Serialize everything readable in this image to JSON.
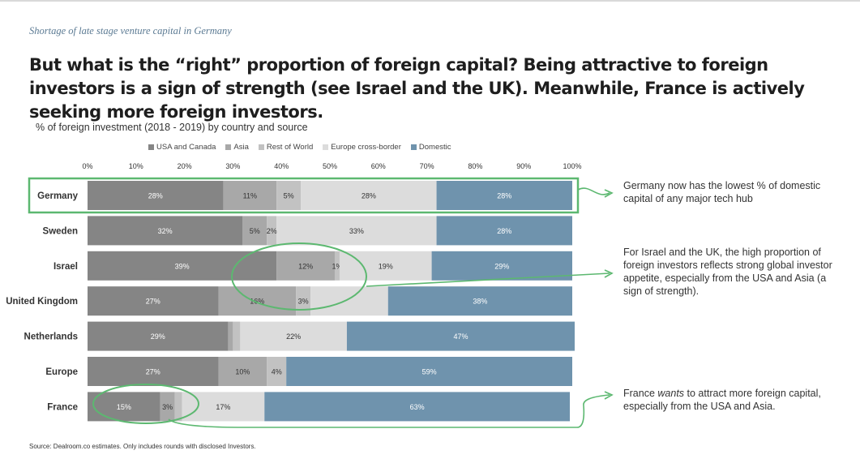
{
  "kicker": "Shortage of late stage venture capital in Germany",
  "headline": "But what is the “right” proportion of foreign capital? Being attractive to foreign investors is a sign of strength (see Israel and the UK). Meanwhile, France is actively seeking more foreign investors.",
  "source": "Source: Dealroom.co estimates. Only includes rounds with disclosed Investors.",
  "annotations": {
    "germany": "Germany now has the lowest % of domestic capital of any major tech hub",
    "israel_uk": "For Israel and the UK, the high proportion of foreign investors reflects strong global investor appetite, especially from the USA and Asia (a sign of strength).",
    "france_pre": "France",
    "france_em": "wants",
    "france_post": "to attract more foreign capital, especially from the USA and Asia."
  },
  "colors": {
    "usa_canada": "#858585",
    "asia": "#a8a8a8",
    "rest_of_world": "#c2c2c2",
    "europe_cross_border": "#dcdcdc",
    "domestic": "#6f93ad",
    "highlight": "#5cb870"
  },
  "chart_data": {
    "type": "bar",
    "orientation": "horizontal",
    "stacked": true,
    "title": "% of foreign investment (2018 - 2019) by country and source",
    "xlim": [
      0,
      100
    ],
    "x_ticks": [
      "0%",
      "10%",
      "20%",
      "30%",
      "40%",
      "50%",
      "60%",
      "70%",
      "80%",
      "90%",
      "100%"
    ],
    "legend_position": "top",
    "categories": [
      "Germany",
      "Sweden",
      "Israel",
      "United Kingdom",
      "Netherlands",
      "Europe",
      "France"
    ],
    "series": [
      {
        "name": "USA and Canada",
        "values": [
          28,
          32,
          39,
          27,
          29,
          27,
          15
        ],
        "labels": [
          "28%",
          "32%",
          "39%",
          "27%",
          "29%",
          "27%",
          "15%"
        ]
      },
      {
        "name": "Asia",
        "values": [
          11,
          5,
          12,
          16,
          1,
          10,
          3
        ],
        "labels": [
          "11%",
          "5%",
          "12%",
          "16%",
          "",
          "10%",
          "3%"
        ]
      },
      {
        "name": "Rest of World",
        "values": [
          5,
          2,
          1,
          3,
          1.5,
          4,
          1.5
        ],
        "labels": [
          "5%",
          "2%",
          "1%",
          "3%",
          "",
          "4%",
          ""
        ]
      },
      {
        "name": "Europe cross-border",
        "values": [
          28,
          33,
          19,
          16,
          22,
          0,
          17
        ],
        "labels": [
          "28%",
          "33%",
          "19%",
          "",
          "22%",
          "",
          "17%"
        ]
      },
      {
        "name": "Domestic",
        "values": [
          28,
          28,
          29,
          38,
          47,
          59,
          63
        ],
        "labels": [
          "28%",
          "28%",
          "29%",
          "38%",
          "47%",
          "59%",
          "63%"
        ]
      }
    ]
  }
}
